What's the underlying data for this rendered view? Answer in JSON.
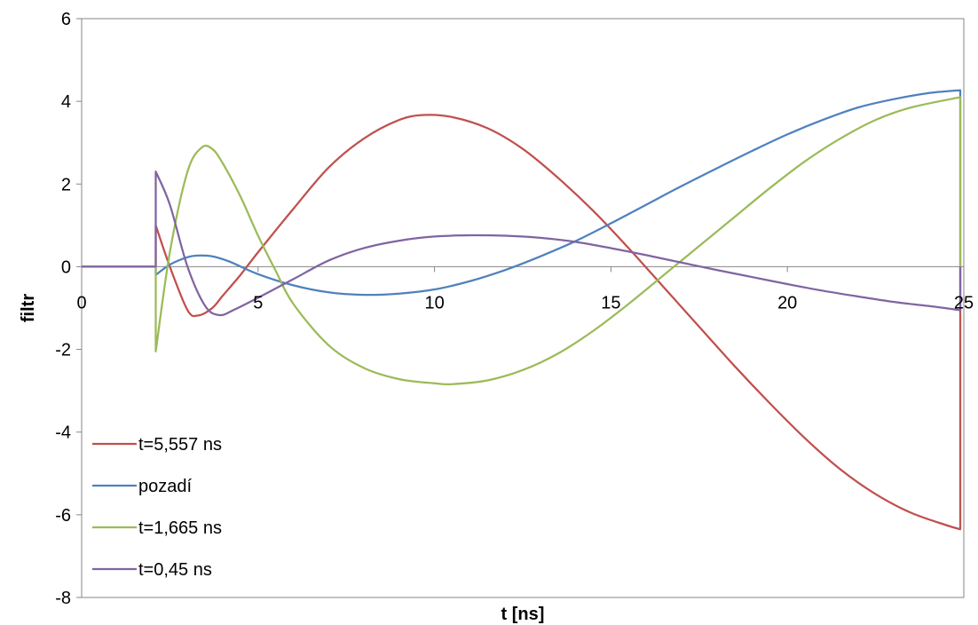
{
  "chart_data": {
    "type": "line",
    "title": "",
    "xlabel": "t [ns]",
    "ylabel": "filtr",
    "xlim": [
      0,
      25
    ],
    "ylim": [
      -8,
      6
    ],
    "x_ticks": [
      0,
      5,
      10,
      15,
      20,
      25
    ],
    "x_tick_labels": [
      "0",
      "5",
      "10",
      "15",
      "20",
      "25"
    ],
    "y_ticks": [
      -8,
      -6,
      -4,
      -2,
      0,
      2,
      4,
      6
    ],
    "y_tick_labels": [
      "-8",
      "-6",
      "-4",
      "-2",
      "0",
      "2",
      "4",
      "6"
    ],
    "grid": false,
    "legend": "bottom-left",
    "series": [
      {
        "name": "t=5,557 ns",
        "color": "#C0504D",
        "x": [
          0,
          2.1,
          2.1,
          2.5,
          3.0,
          3.3,
          3.7,
          4.0,
          4.5,
          5.0,
          6.0,
          7.0,
          8.0,
          9.0,
          9.7,
          10.5,
          11.5,
          12.5,
          13.5,
          14.5,
          15.5,
          16.5,
          17.5,
          18.5,
          19.5,
          20.5,
          21.5,
          22.5,
          23.5,
          24.5,
          24.9,
          24.9
        ],
        "y": [
          0,
          0,
          1.0,
          0,
          -1.05,
          -1.18,
          -1.0,
          -0.7,
          -0.2,
          0.35,
          1.4,
          2.4,
          3.1,
          3.55,
          3.67,
          3.62,
          3.35,
          2.85,
          2.15,
          1.35,
          0.45,
          -0.5,
          -1.45,
          -2.4,
          -3.3,
          -4.15,
          -4.9,
          -5.5,
          -5.95,
          -6.25,
          -6.35,
          0
        ]
      },
      {
        "name": "pozadí",
        "color": "#4F81BD",
        "x": [
          0,
          2.1,
          2.1,
          2.5,
          3.0,
          3.3,
          3.7,
          4.2,
          5.0,
          6.0,
          7.0,
          8.0,
          9.0,
          10.0,
          11.0,
          12.0,
          13.0,
          14.0,
          15.0,
          16.0,
          17.0,
          18.0,
          19.0,
          20.0,
          21.0,
          22.0,
          23.0,
          24.0,
          24.9,
          24.9
        ],
        "y": [
          0,
          0,
          -0.2,
          0.05,
          0.23,
          0.27,
          0.25,
          0.12,
          -0.18,
          -0.45,
          -0.62,
          -0.68,
          -0.65,
          -0.55,
          -0.35,
          -0.08,
          0.25,
          0.62,
          1.05,
          1.5,
          1.95,
          2.38,
          2.8,
          3.2,
          3.55,
          3.85,
          4.05,
          4.2,
          4.27,
          0
        ]
      },
      {
        "name": "t=1,665 ns",
        "color": "#9BBB59",
        "x": [
          0,
          2.1,
          2.1,
          2.5,
          3.0,
          3.4,
          3.7,
          4.0,
          4.5,
          5.0,
          5.5,
          6.0,
          7.0,
          8.0,
          9.0,
          10.0,
          10.5,
          11.5,
          12.5,
          13.5,
          14.5,
          15.5,
          16.5,
          17.5,
          18.5,
          19.5,
          20.5,
          21.5,
          22.5,
          23.5,
          24.9,
          24.9
        ],
        "y": [
          0,
          0,
          -2.05,
          0.35,
          2.3,
          2.88,
          2.85,
          2.5,
          1.7,
          0.75,
          -0.1,
          -0.9,
          -1.9,
          -2.45,
          -2.72,
          -2.82,
          -2.84,
          -2.75,
          -2.5,
          -2.1,
          -1.55,
          -0.9,
          -0.2,
          0.5,
          1.2,
          1.9,
          2.55,
          3.1,
          3.55,
          3.85,
          4.1,
          0
        ]
      },
      {
        "name": "t=0,45 ns",
        "color": "#8064A2",
        "x": [
          0,
          2.1,
          2.1,
          2.5,
          3.0,
          3.5,
          3.9,
          4.3,
          5.0,
          6.0,
          7.0,
          8.0,
          9.0,
          10.0,
          11.0,
          12.0,
          13.0,
          14.0,
          15.0,
          16.0,
          17.0,
          18.0,
          19.0,
          20.0,
          21.0,
          22.0,
          23.0,
          24.0,
          24.9,
          24.9
        ],
        "y": [
          0,
          0,
          2.3,
          1.5,
          0.0,
          -0.95,
          -1.17,
          -1.05,
          -0.75,
          -0.3,
          0.15,
          0.45,
          0.63,
          0.73,
          0.76,
          0.75,
          0.7,
          0.6,
          0.45,
          0.28,
          0.1,
          -0.08,
          -0.25,
          -0.42,
          -0.58,
          -0.72,
          -0.85,
          -0.95,
          -1.05,
          0
        ]
      }
    ]
  }
}
